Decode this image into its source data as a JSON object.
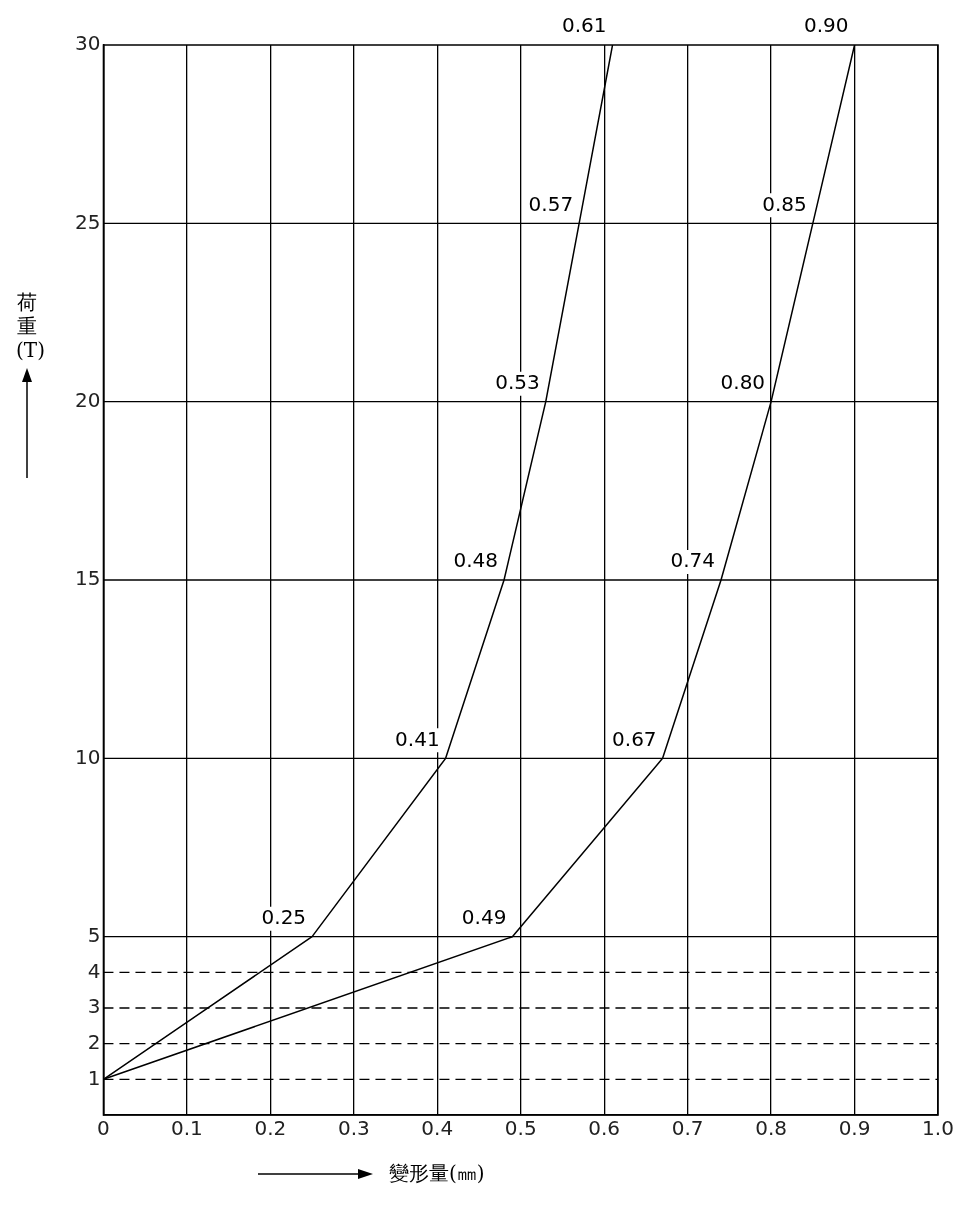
{
  "chart_data": {
    "type": "line",
    "xlabel": "變形量(㎜)",
    "ylabel": "荷重(T)",
    "xlim": [
      0,
      1
    ],
    "xticks": [
      0,
      0.1,
      0.2,
      0.3,
      0.4,
      0.5,
      0.6,
      0.7,
      0.8,
      0.9,
      {
        "value": 1,
        "label": "1.0"
      }
    ],
    "ylim": [
      0,
      30
    ],
    "yticks": [
      1,
      2,
      3,
      4,
      5,
      10,
      15,
      20,
      25,
      30
    ],
    "grid": "x",
    "legend": false,
    "marker": "none",
    "line_style": "solid",
    "series": [
      {
        "color": "#000000",
        "x": [
          0,
          0.25,
          0.41,
          0.48,
          0.53,
          0.57,
          0.61
        ],
        "values": [
          1,
          5,
          10,
          15,
          20,
          25,
          30
        ]
      },
      {
        "color": "#000000",
        "x": [
          0,
          0.49,
          0.67,
          0.74,
          0.8,
          0.85,
          0.9
        ],
        "values": [
          1,
          5,
          10,
          15,
          20,
          25,
          30
        ]
      }
    ],
    "ref_lines": [
      {
        "axis": "y",
        "value": 1,
        "line_style": "dashed"
      },
      {
        "axis": "y",
        "value": 2,
        "line_style": "dashed"
      },
      {
        "axis": "y",
        "value": 3,
        "line_style": "dashed"
      },
      {
        "axis": "y",
        "value": 4,
        "line_style": "dashed"
      },
      {
        "axis": "y",
        "value": 5,
        "line_style": "solid"
      },
      {
        "axis": "y",
        "value": 10,
        "line_style": "solid"
      },
      {
        "axis": "y",
        "value": 15,
        "line_style": "solid"
      },
      {
        "axis": "y",
        "value": 20,
        "line_style": "solid"
      },
      {
        "axis": "y",
        "value": 25,
        "line_style": "solid"
      }
    ],
    "annotations": [
      {
        "text": "0.25",
        "x": 0.25,
        "y": 5
      },
      {
        "text": "0.41",
        "x": 0.41,
        "y": 10
      },
      {
        "text": "0.48",
        "x": 0.48,
        "y": 15
      },
      {
        "text": "0.53",
        "x": 0.53,
        "y": 20
      },
      {
        "text": "0.57",
        "x": 0.57,
        "y": 25
      },
      {
        "text": "0.61",
        "x": 0.61,
        "y": 30
      },
      {
        "text": "0.49",
        "x": 0.49,
        "y": 5
      },
      {
        "text": "0.67",
        "x": 0.67,
        "y": 10
      },
      {
        "text": "0.74",
        "x": 0.74,
        "y": 15
      },
      {
        "text": "0.80",
        "x": 0.8,
        "y": 20
      },
      {
        "text": "0.85",
        "x": 0.85,
        "y": 25
      },
      {
        "text": "0.90",
        "x": 0.9,
        "y": 30
      }
    ]
  }
}
